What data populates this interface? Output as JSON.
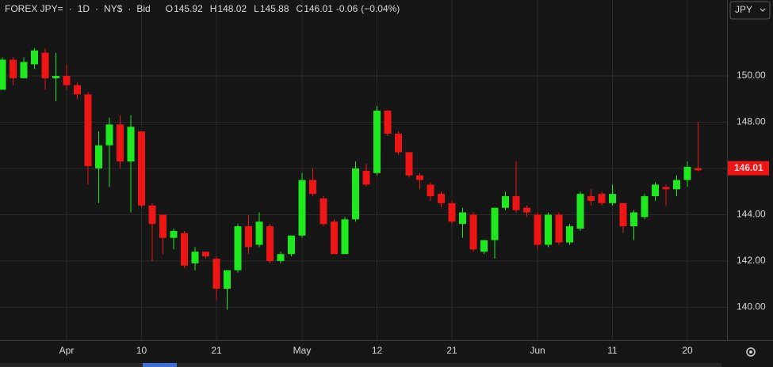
{
  "chart_data": {
    "type": "candlestick",
    "symbol": "FOREX JPY=",
    "interval": "1D",
    "exchange": "NY$",
    "quote_side": "Bid",
    "ohlc_letters": [
      "O",
      "H",
      "L",
      "C"
    ],
    "ohlc_values": [
      145.92,
      148.02,
      145.88,
      146.01
    ],
    "change": -0.06,
    "change_pct": "(−0.04%)",
    "currency": "JPY",
    "up_color": "#1ee81e",
    "down_color": "#ee1515",
    "grid": true,
    "categories": [
      null,
      null,
      null,
      null,
      null,
      null,
      "Apr",
      null,
      null,
      null,
      null,
      null,
      null,
      "10",
      null,
      null,
      null,
      null,
      null,
      null,
      "21",
      null,
      null,
      null,
      null,
      null,
      null,
      null,
      "May",
      null,
      null,
      null,
      null,
      null,
      null,
      "12",
      null,
      null,
      null,
      null,
      null,
      null,
      "21",
      null,
      null,
      null,
      null,
      null,
      null,
      null,
      "Jun",
      null,
      null,
      null,
      null,
      null,
      null,
      "11",
      null,
      null,
      null,
      null,
      null,
      null,
      "20",
      null
    ],
    "open": [
      149.4,
      150.7,
      149.9,
      150.5,
      151.0,
      149.9,
      150.0,
      149.6,
      149.2,
      146.0,
      147.0,
      147.9,
      146.3,
      147.6,
      144.4,
      144.0,
      143.0,
      143.2,
      141.9,
      142.4,
      142.1,
      140.8,
      141.6,
      143.5,
      142.7,
      143.5,
      142.0,
      142.3,
      143.1,
      145.5,
      144.7,
      143.7,
      142.3,
      143.8,
      145.9,
      145.8,
      148.5,
      147.5,
      146.7,
      145.7,
      145.3,
      144.9,
      144.5,
      143.6,
      144.0,
      142.4,
      142.9,
      144.3,
      144.8,
      144.3,
      144.0,
      142.7,
      144.0,
      142.8,
      143.4,
      144.6,
      144.9,
      144.5,
      144.5,
      143.5,
      143.9,
      144.8,
      145.2,
      145.1,
      145.5,
      145.92
    ],
    "high": [
      150.8,
      150.8,
      150.8,
      151.2,
      151.2,
      151.0,
      150.5,
      149.7,
      149.3,
      147.6,
      148.2,
      148.3,
      148.3,
      147.6,
      144.5,
      144.0,
      143.4,
      143.3,
      142.6,
      142.4,
      142.2,
      141.6,
      143.6,
      144.0,
      144.1,
      143.6,
      142.4,
      143.1,
      145.8,
      146.0,
      144.8,
      143.8,
      143.9,
      146.3,
      146.2,
      148.7,
      148.5,
      147.6,
      146.7,
      145.8,
      145.4,
      145.0,
      144.6,
      144.3,
      144.1,
      142.9,
      144.3,
      145.0,
      146.3,
      144.4,
      144.1,
      144.1,
      144.1,
      143.6,
      145.0,
      145.1,
      145.0,
      145.3,
      144.5,
      144.2,
      144.9,
      145.4,
      145.3,
      145.7,
      146.3,
      148.02
    ],
    "low": [
      149.4,
      149.6,
      149.9,
      150.3,
      149.4,
      148.9,
      149.4,
      149.0,
      145.3,
      144.5,
      145.2,
      146.0,
      144.1,
      144.3,
      142.0,
      142.3,
      142.5,
      141.7,
      141.6,
      142.1,
      140.3,
      139.9,
      141.5,
      142.3,
      142.6,
      141.9,
      141.9,
      142.2,
      143.0,
      144.8,
      143.5,
      142.3,
      142.3,
      143.7,
      145.2,
      145.7,
      147.4,
      146.6,
      145.6,
      145.1,
      144.6,
      144.3,
      143.6,
      143.0,
      142.4,
      142.3,
      142.1,
      144.2,
      144.1,
      143.9,
      142.5,
      142.6,
      142.7,
      142.7,
      143.3,
      144.4,
      144.4,
      144.4,
      143.2,
      142.9,
      143.8,
      144.6,
      144.4,
      144.8,
      145.2,
      145.88
    ],
    "close": [
      150.7,
      149.9,
      150.6,
      151.1,
      149.9,
      150.0,
      149.6,
      149.2,
      146.1,
      147.0,
      147.9,
      146.3,
      147.8,
      144.4,
      143.6,
      143.0,
      143.3,
      141.8,
      142.4,
      142.2,
      140.8,
      141.6,
      143.5,
      142.6,
      143.7,
      142.0,
      142.3,
      143.1,
      145.5,
      144.9,
      143.6,
      142.3,
      143.8,
      146.0,
      145.3,
      148.5,
      147.5,
      146.7,
      145.7,
      145.5,
      144.8,
      144.5,
      143.7,
      144.1,
      142.5,
      142.9,
      144.3,
      144.8,
      144.2,
      144.1,
      142.7,
      144.0,
      142.8,
      143.5,
      144.9,
      144.8,
      144.5,
      144.9,
      143.5,
      144.1,
      144.8,
      145.3,
      145.1,
      145.5,
      146.07,
      146.01
    ],
    "ylim": [
      138.58,
      153.28
    ],
    "yticks": [
      {
        "value": 140,
        "label": "140.00"
      },
      {
        "value": 142,
        "label": "142.00"
      },
      {
        "value": 144,
        "label": "144.00"
      },
      {
        "value": 146,
        "label": "146.00"
      },
      {
        "value": 148,
        "label": "148.00"
      },
      {
        "value": 150,
        "label": "150.00"
      }
    ]
  }
}
